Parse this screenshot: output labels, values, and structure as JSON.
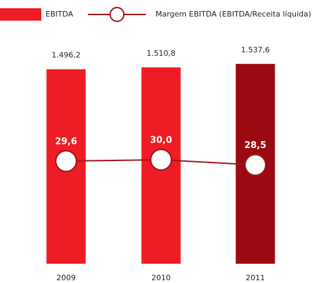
{
  "chart_data": {
    "type": "bar",
    "categories": [
      "2009",
      "2010",
      "2011"
    ],
    "series": [
      {
        "name": "EBITDA",
        "colors": [
          "#ee1c25",
          "#ee1c25",
          "#9b0a10"
        ],
        "values": [
          1496.2,
          1510.8,
          1537.6
        ],
        "value_labels": [
          "1.496,2",
          "1.510,8",
          "1.537,6"
        ]
      },
      {
        "name": "Margem EBITDA (EBITDA/Receita líquida)",
        "type": "line",
        "axis": "y2",
        "color": "#a0151a",
        "values": [
          29.6,
          30.0,
          28.5
        ],
        "value_labels": [
          "29,6",
          "30,0",
          "28,5"
        ]
      }
    ],
    "ylim": [
      0,
      1600
    ],
    "y2lim": [
      0,
      60
    ]
  }
}
